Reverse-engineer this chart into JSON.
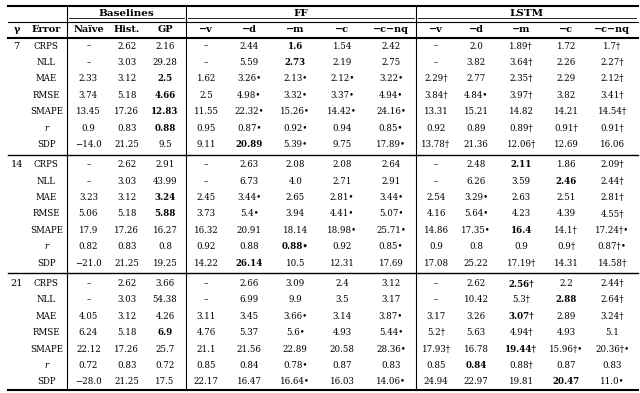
{
  "rows": [
    [
      "7",
      "CRPS",
      "–",
      "2.62",
      "2.16",
      "–",
      "2.44",
      "1.6",
      "1.54",
      "2.42",
      "–",
      "2.0",
      "1.89†",
      "1.72",
      "1.7†",
      false,
      false,
      false,
      false,
      false,
      false,
      false,
      false,
      true,
      false,
      false,
      false,
      false,
      false,
      false
    ],
    [
      "",
      "NLL",
      "–",
      "3.03",
      "29.28",
      "–",
      "5.59",
      "2.73",
      "2.19",
      "2.75",
      "–",
      "3.82",
      "3.64†",
      "2.26",
      "2.27†",
      false,
      false,
      false,
      false,
      false,
      false,
      false,
      false,
      true,
      false,
      false,
      false,
      false,
      false,
      false
    ],
    [
      "",
      "MAE",
      "2.33",
      "3.12",
      "2.5",
      "1.62",
      "3.26•",
      "2.13•",
      "2.12•",
      "3.22•",
      "2.29†",
      "2.77",
      "2.35†",
      "2.29",
      "2.12†",
      false,
      false,
      false,
      false,
      false,
      true,
      false,
      false,
      false,
      false,
      false,
      false,
      false,
      false,
      false
    ],
    [
      "",
      "RMSE",
      "3.74",
      "5.18",
      "4.66",
      "2.5",
      "4.98•",
      "3.32•",
      "3.37•",
      "4.94•",
      "3.84†",
      "4.84•",
      "3.97†",
      "3.82",
      "3.41†",
      false,
      false,
      false,
      false,
      false,
      true,
      false,
      false,
      false,
      false,
      false,
      false,
      false,
      false,
      false
    ],
    [
      "",
      "SMAPE",
      "13.45",
      "17.26",
      "12.83",
      "11.55",
      "22.32•",
      "15.26•",
      "14.42•",
      "24.16•",
      "13.31",
      "15.21",
      "14.82",
      "14.21",
      "14.54†",
      false,
      false,
      false,
      false,
      false,
      true,
      false,
      false,
      false,
      false,
      false,
      false,
      false,
      false,
      false
    ],
    [
      "",
      "r",
      "0.9",
      "0.83",
      "0.88",
      "0.95",
      "0.87•",
      "0.92•",
      "0.94",
      "0.85•",
      "0.92",
      "0.89",
      "0.89†",
      "0.91†",
      "0.91†",
      false,
      false,
      false,
      false,
      false,
      true,
      false,
      false,
      false,
      false,
      false,
      false,
      false,
      false,
      false
    ],
    [
      "",
      "SDP",
      "−14.0",
      "21.25",
      "9.5",
      "9.11",
      "20.89",
      "5.39•",
      "9.75",
      "17.89•",
      "13.78†",
      "21.36",
      "12.06†",
      "12.69",
      "16.06",
      false,
      false,
      false,
      false,
      false,
      false,
      false,
      true,
      false,
      false,
      false,
      false,
      false,
      false,
      false
    ],
    [
      "14",
      "CRPS",
      "–",
      "2.62",
      "2.91",
      "–",
      "2.63",
      "2.08",
      "2.08",
      "2.64",
      "–",
      "2.48",
      "2.11",
      "1.86",
      "2.09†",
      false,
      false,
      false,
      false,
      false,
      false,
      false,
      false,
      false,
      false,
      false,
      false,
      false,
      true,
      false
    ],
    [
      "",
      "NLL",
      "–",
      "3.03",
      "43.99",
      "–",
      "6.73",
      "4.0",
      "2.71",
      "2.91",
      "–",
      "6.26",
      "3.59",
      "2.46",
      "2.44†",
      false,
      false,
      false,
      false,
      false,
      false,
      false,
      false,
      false,
      false,
      false,
      false,
      false,
      false,
      true
    ],
    [
      "",
      "MAE",
      "3.23",
      "3.12",
      "3.24",
      "2.45",
      "3.44•",
      "2.65",
      "2.81•",
      "3.44•",
      "2.54",
      "3.29•",
      "2.63",
      "2.51",
      "2.81†",
      false,
      false,
      false,
      false,
      false,
      true,
      false,
      false,
      false,
      false,
      false,
      false,
      false,
      false,
      false
    ],
    [
      "",
      "RMSE",
      "5.06",
      "5.18",
      "5.88",
      "3.73",
      "5.4•",
      "3.94",
      "4.41•",
      "5.07•",
      "4.16",
      "5.64•",
      "4.23",
      "4.39",
      "4.55†",
      false,
      false,
      false,
      false,
      false,
      true,
      false,
      false,
      false,
      false,
      false,
      false,
      false,
      false,
      false
    ],
    [
      "",
      "SMAPE",
      "17.9",
      "17.26",
      "16.27",
      "16.32",
      "20.91",
      "18.14",
      "18.98•",
      "25.71•",
      "14.86",
      "17.35•",
      "16.4",
      "14.1†",
      "17.24†•",
      false,
      false,
      false,
      false,
      false,
      false,
      false,
      false,
      false,
      false,
      false,
      false,
      false,
      true,
      false
    ],
    [
      "",
      "r",
      "0.82",
      "0.83",
      "0.8",
      "0.92",
      "0.88",
      "0.88•",
      "0.92",
      "0.85•",
      "0.9",
      "0.8",
      "0.9",
      "0.9†",
      "0.87†•",
      false,
      false,
      false,
      false,
      false,
      false,
      false,
      false,
      true,
      false,
      false,
      false,
      false,
      false,
      false
    ],
    [
      "",
      "SDP",
      "−21.0",
      "21.25",
      "19.25",
      "14.22",
      "26.14",
      "10.5",
      "12.31",
      "17.69",
      "17.08",
      "25.22",
      "17.19†",
      "14.31",
      "14.58†",
      false,
      false,
      false,
      false,
      false,
      false,
      false,
      true,
      false,
      false,
      false,
      false,
      false,
      false,
      false
    ],
    [
      "21",
      "CRPS",
      "–",
      "2.62",
      "3.66",
      "–",
      "2.66",
      "3.09",
      "2.4",
      "3.12",
      "–",
      "2.62",
      "2.56†",
      "2.2",
      "2.44†",
      false,
      false,
      false,
      false,
      false,
      false,
      false,
      false,
      false,
      false,
      false,
      false,
      false,
      true,
      false
    ],
    [
      "",
      "NLL",
      "–",
      "3.03",
      "54.38",
      "–",
      "6.99",
      "9.9",
      "3.5",
      "3.17",
      "–",
      "10.42",
      "5.3†",
      "2.88",
      "2.64†",
      false,
      false,
      false,
      false,
      false,
      false,
      false,
      false,
      false,
      false,
      false,
      false,
      false,
      false,
      true
    ],
    [
      "",
      "MAE",
      "4.05",
      "3.12",
      "4.26",
      "3.11",
      "3.45",
      "3.66•",
      "3.14",
      "3.87•",
      "3.17",
      "3.26",
      "3.07†",
      "2.89",
      "3.24†",
      false,
      false,
      false,
      false,
      false,
      false,
      false,
      false,
      false,
      false,
      false,
      false,
      false,
      true,
      false
    ],
    [
      "",
      "RMSE",
      "6.24",
      "5.18",
      "6.9",
      "4.76",
      "5.37",
      "5.6•",
      "4.93",
      "5.44•",
      "5.2†",
      "5.63",
      "4.94†",
      "4.93",
      "5.1",
      false,
      false,
      false,
      false,
      false,
      true,
      false,
      false,
      false,
      false,
      false,
      false,
      false,
      false,
      false
    ],
    [
      "",
      "SMAPE",
      "22.12",
      "17.26",
      "25.7",
      "21.1",
      "21.56",
      "22.89",
      "20.58",
      "28.36•",
      "17.93†",
      "16.78",
      "19.44†",
      "15.96†•",
      "20.36†•",
      false,
      false,
      false,
      false,
      false,
      false,
      false,
      false,
      false,
      false,
      false,
      false,
      false,
      true,
      false
    ],
    [
      "",
      "r",
      "0.72",
      "0.83",
      "0.72",
      "0.85",
      "0.84",
      "0.78•",
      "0.87",
      "0.83",
      "0.85",
      "0.84",
      "0.88†",
      "0.87",
      "0.83",
      false,
      false,
      false,
      false,
      false,
      false,
      false,
      false,
      false,
      false,
      false,
      false,
      true,
      false,
      false
    ],
    [
      "",
      "SDP",
      "−28.0",
      "21.25",
      "17.5",
      "22.17",
      "16.47",
      "16.64•",
      "16.03",
      "14.06•",
      "24.94",
      "22.97",
      "19.81",
      "20.47",
      "11.0•",
      false,
      false,
      false,
      false,
      false,
      false,
      false,
      false,
      false,
      false,
      false,
      false,
      false,
      false,
      true
    ]
  ]
}
